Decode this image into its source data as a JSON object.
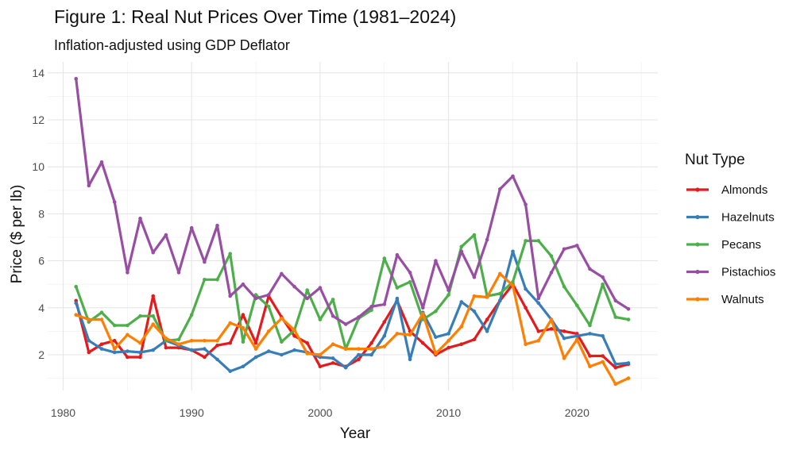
{
  "chart_data": {
    "type": "line",
    "title": "Figure 1: Real Nut Prices Over Time (1981–2024)",
    "subtitle": "Inflation-adjusted using GDP Deflator",
    "xlabel": "Year",
    "ylabel": "Price ($ per lb)",
    "xlim": [
      1980,
      2025
    ],
    "ylim": [
      1,
      14.5
    ],
    "x_ticks": [
      1980,
      1990,
      2000,
      2010,
      2020
    ],
    "y_ticks": [
      2,
      4,
      6,
      8,
      10,
      12,
      14
    ],
    "grid": true,
    "legend_title": "Nut Type",
    "legend_position": "right",
    "x": [
      1981,
      1982,
      1983,
      1984,
      1985,
      1986,
      1987,
      1988,
      1989,
      1990,
      1991,
      1992,
      1993,
      1994,
      1995,
      1996,
      1997,
      1998,
      1999,
      2000,
      2001,
      2002,
      2003,
      2004,
      2005,
      2006,
      2007,
      2008,
      2009,
      2010,
      2011,
      2012,
      2013,
      2014,
      2015,
      2016,
      2017,
      2018,
      2019,
      2020,
      2021,
      2022,
      2023,
      2024
    ],
    "series": [
      {
        "name": "Almonds",
        "color": "#E41A1C",
        "values": [
          4.3,
          2.1,
          2.45,
          2.6,
          1.9,
          1.9,
          4.5,
          2.3,
          2.3,
          2.2,
          1.9,
          2.4,
          2.5,
          3.7,
          2.5,
          4.5,
          3.6,
          2.8,
          2.5,
          1.5,
          1.65,
          1.5,
          1.8,
          2.5,
          3.4,
          4.3,
          3.0,
          2.5,
          2.0,
          2.3,
          2.45,
          2.65,
          3.5,
          4.3,
          5.0,
          4.0,
          3.0,
          3.1,
          3.0,
          2.9,
          1.95,
          1.95,
          1.45,
          1.6
        ]
      },
      {
        "name": "Hazelnuts",
        "color": "#377EB8",
        "values": [
          4.2,
          2.6,
          2.25,
          2.1,
          2.15,
          2.1,
          2.2,
          2.6,
          2.4,
          2.2,
          2.25,
          1.8,
          1.3,
          1.5,
          1.9,
          2.15,
          2.0,
          2.2,
          2.1,
          1.9,
          1.85,
          1.45,
          2.0,
          2.0,
          2.8,
          4.4,
          1.8,
          3.8,
          2.75,
          2.9,
          4.25,
          3.85,
          3.0,
          4.3,
          6.4,
          4.8,
          4.2,
          3.5,
          2.7,
          2.8,
          2.9,
          2.8,
          1.6,
          1.65
        ]
      },
      {
        "name": "Pecans",
        "color": "#4DAF4A",
        "values": [
          4.9,
          3.4,
          3.8,
          3.25,
          3.25,
          3.65,
          3.65,
          2.6,
          2.65,
          3.7,
          5.2,
          5.2,
          6.3,
          2.55,
          4.55,
          4.05,
          2.55,
          3.05,
          4.75,
          3.5,
          4.35,
          2.25,
          3.55,
          3.9,
          6.1,
          4.85,
          5.1,
          3.5,
          3.85,
          4.55,
          6.6,
          7.1,
          4.5,
          4.6,
          5.1,
          6.85,
          6.85,
          6.2,
          4.9,
          4.1,
          3.25,
          5.0,
          3.6,
          3.5
        ]
      },
      {
        "name": "Pistachios",
        "color": "#984EA3",
        "values": [
          13.75,
          9.2,
          10.2,
          8.5,
          5.5,
          7.8,
          6.35,
          7.1,
          5.5,
          7.4,
          5.95,
          7.5,
          4.5,
          5.0,
          4.4,
          4.55,
          5.45,
          4.9,
          4.4,
          4.85,
          3.65,
          3.3,
          3.6,
          4.05,
          4.15,
          6.25,
          5.5,
          4.0,
          6.0,
          4.75,
          6.4,
          5.3,
          6.9,
          9.05,
          9.6,
          8.4,
          4.4,
          5.5,
          6.5,
          6.65,
          5.65,
          5.3,
          4.3,
          3.95
        ]
      },
      {
        "name": "Walnuts",
        "color": "#FF7F00",
        "values": [
          3.7,
          3.5,
          3.5,
          2.25,
          2.85,
          2.5,
          3.3,
          2.7,
          2.45,
          2.6,
          2.6,
          2.6,
          3.35,
          3.15,
          2.25,
          3.0,
          3.55,
          3.05,
          2.05,
          2.0,
          2.45,
          2.25,
          2.25,
          2.25,
          2.35,
          2.9,
          2.85,
          3.75,
          2.05,
          2.6,
          3.2,
          4.5,
          4.45,
          5.45,
          4.95,
          2.45,
          2.6,
          3.5,
          1.85,
          2.65,
          1.5,
          1.7,
          0.75,
          1.0
        ]
      }
    ]
  }
}
